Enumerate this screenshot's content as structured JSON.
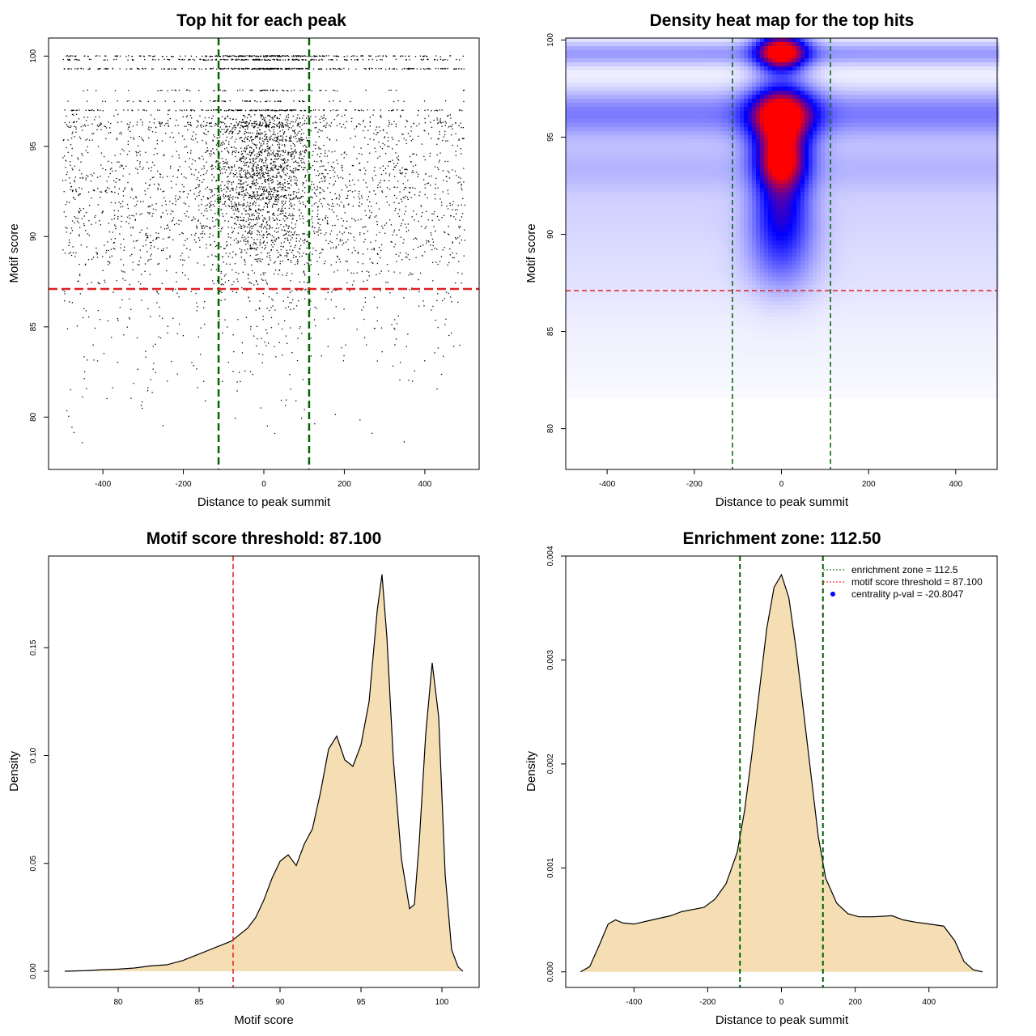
{
  "panels": {
    "scatter": {
      "title": "Top hit for each peak",
      "xlabel": "Distance to peak summit",
      "ylabel": "Motif score"
    },
    "heatmap": {
      "title": "Density heat map for the top hits",
      "xlabel": "Distance to peak summit",
      "ylabel": "Motif score"
    },
    "score_density": {
      "title": "Motif score threshold: 87.100",
      "xlabel": "Motif score",
      "ylabel": "Density"
    },
    "distance_density": {
      "title": "Enrichment zone: 112.50",
      "xlabel": "Distance to peak summit",
      "ylabel": "Density",
      "legend": [
        {
          "label": "enrichment zone = 112.5",
          "color": "#006400",
          "style": "dotted-line"
        },
        {
          "label": "motif score threshold = 87.100",
          "color": "#ff0000",
          "style": "dotted-line"
        },
        {
          "label": "centrality p-val = -20.8047",
          "color": "#0000ff",
          "style": "point"
        }
      ]
    }
  },
  "colors": {
    "zone_line": "#006400",
    "threshold_line": "#e02020",
    "density_fill": "#f5deb3",
    "points": "#000000",
    "heat_low": "#ffffff",
    "heat_mid": "#0000ff",
    "heat_high": "#ff0000"
  },
  "chart_data": [
    {
      "id": "scatter",
      "type": "scatter",
      "title": "Top hit for each peak",
      "xlabel": "Distance to peak summit",
      "ylabel": "Motif score",
      "xlim": [
        -535,
        535
      ],
      "ylim": [
        77.1,
        101.0
      ],
      "xticks": [
        -400,
        -200,
        0,
        200,
        400
      ],
      "yticks": [
        80,
        85,
        90,
        95,
        100
      ],
      "score_levels": [
        100,
        99.8,
        99.3,
        98.1,
        97.5,
        97.0,
        96.6,
        96.2,
        95.8,
        95.4,
        95.0,
        94.6,
        94.2,
        93.8,
        93.4,
        93.0,
        92.6,
        92.2,
        91.8,
        91.4,
        91.0,
        90.6,
        90.2,
        89.8,
        89.4,
        89.0,
        88.6,
        88.0,
        87.5,
        87.0,
        86.5,
        86.0,
        85.5,
        85.0,
        84.5,
        84.0,
        83.5,
        83.0,
        82.5,
        82.0,
        81.5,
        81.0,
        80.5,
        80.0,
        79.5,
        79.0,
        78.5
      ],
      "level_counts": [
        260,
        200,
        320,
        70,
        70,
        190,
        140,
        330,
        140,
        200,
        110,
        200,
        160,
        230,
        200,
        160,
        220,
        220,
        180,
        140,
        170,
        150,
        140,
        140,
        130,
        110,
        100,
        70,
        60,
        50,
        40,
        35,
        30,
        30,
        24,
        20,
        18,
        16,
        14,
        12,
        10,
        8,
        6,
        5,
        4,
        3,
        2
      ],
      "central_fraction": [
        0.4,
        0.4,
        0.35,
        0.45,
        0.45,
        0.4,
        0.35,
        0.35,
        0.4,
        0.5,
        0.55,
        0.5,
        0.55,
        0.5,
        0.5,
        0.45,
        0.45,
        0.5,
        0.45,
        0.4,
        0.4,
        0.4,
        0.35,
        0.35,
        0.35,
        0.3,
        0.3,
        0.25,
        0.25,
        0.2,
        0.2,
        0.2,
        0.2,
        0.15,
        0.15,
        0.15,
        0.15,
        0.1,
        0.1,
        0.1,
        0.1,
        0.1,
        0.1,
        0.1,
        0.1,
        0.1,
        0.1
      ],
      "vlines": [
        -112.5,
        112.5
      ],
      "hline": 87.1
    },
    {
      "id": "heatmap",
      "type": "heatmap",
      "title": "Density heat map for the top hits",
      "xlabel": "Distance to peak summit",
      "ylabel": "Motif score",
      "xlim": [
        -495,
        495
      ],
      "ylim": [
        77.9,
        100.1
      ],
      "xticks": [
        -400,
        -200,
        0,
        200,
        400
      ],
      "yticks": [
        80,
        85,
        90,
        95,
        100
      ],
      "hotspots": [
        {
          "x": 0,
          "y": 99.4,
          "intensity": 1.0,
          "sx": 40,
          "sy": 0.7
        },
        {
          "x": 0,
          "y": 96.1,
          "intensity": 1.0,
          "sx": 50,
          "sy": 1.1
        },
        {
          "x": 0,
          "y": 93.8,
          "intensity": 0.8,
          "sx": 40,
          "sy": 1.0
        },
        {
          "x": 0,
          "y": 91.5,
          "intensity": 0.45,
          "sx": 45,
          "sy": 1.5
        },
        {
          "x": 0,
          "y": 89.0,
          "intensity": 0.25,
          "sx": 55,
          "sy": 1.5
        }
      ],
      "bands": [
        {
          "y": 99.3,
          "intensity": 0.22,
          "sy": 0.45
        },
        {
          "y": 96.2,
          "intensity": 0.28,
          "sy": 0.9
        },
        {
          "y": 93.5,
          "intensity": 0.14,
          "sy": 1.0
        },
        {
          "y": 91.0,
          "intensity": 0.08,
          "sy": 1.4
        },
        {
          "y": 88.0,
          "intensity": 0.05,
          "sy": 1.5
        },
        {
          "y": 84.5,
          "intensity": 0.025,
          "sy": 2.2
        }
      ],
      "vlines": [
        -112.5,
        112.5
      ],
      "hline": 87.1
    },
    {
      "id": "score_density",
      "type": "area",
      "title": "Motif score threshold: 87.100",
      "xlabel": "Motif score",
      "ylabel": "Density",
      "xlim": [
        75.7,
        102.3
      ],
      "ylim": [
        -0.0075,
        0.1925
      ],
      "xticks": [
        80,
        85,
        90,
        95,
        100
      ],
      "yticks": [
        0.0,
        0.05,
        0.1,
        0.15
      ],
      "ytick_labels": [
        "0.00",
        "0.05",
        "0.10",
        "0.15"
      ],
      "x": [
        76.7,
        78,
        79,
        80,
        81,
        82,
        83,
        84,
        85,
        86,
        87,
        88,
        88.5,
        89,
        89.5,
        90,
        90.5,
        91,
        91.5,
        92,
        92.5,
        93,
        93.5,
        94,
        94.5,
        95,
        95.5,
        96,
        96.3,
        96.6,
        97,
        97.5,
        98,
        98.3,
        98.6,
        99,
        99.4,
        99.8,
        100.2,
        100.6,
        101,
        101.3
      ],
      "y": [
        0.0,
        0.0003,
        0.0007,
        0.001,
        0.0015,
        0.0025,
        0.003,
        0.005,
        0.008,
        0.011,
        0.014,
        0.02,
        0.025,
        0.033,
        0.043,
        0.051,
        0.054,
        0.049,
        0.059,
        0.066,
        0.083,
        0.103,
        0.109,
        0.098,
        0.095,
        0.105,
        0.125,
        0.167,
        0.184,
        0.155,
        0.098,
        0.052,
        0.029,
        0.031,
        0.06,
        0.11,
        0.143,
        0.118,
        0.045,
        0.01,
        0.002,
        0.0
      ],
      "vline": 87.1
    },
    {
      "id": "distance_density",
      "type": "area",
      "title": "Enrichment zone: 112.50",
      "xlabel": "Distance to peak summit",
      "ylabel": "Density",
      "xlim": [
        -585,
        585
      ],
      "ylim": [
        -0.00015,
        0.004
      ],
      "xticks": [
        -400,
        -200,
        0,
        200,
        400
      ],
      "yticks": [
        0.0,
        0.001,
        0.002,
        0.003,
        0.004
      ],
      "ytick_labels": [
        "0.000",
        "0.001",
        "0.002",
        "0.003",
        "0.004"
      ],
      "x": [
        -545,
        -520,
        -495,
        -470,
        -450,
        -430,
        -400,
        -350,
        -300,
        -270,
        -240,
        -210,
        -180,
        -150,
        -120,
        -100,
        -80,
        -60,
        -40,
        -20,
        0,
        20,
        40,
        60,
        80,
        100,
        120,
        150,
        180,
        210,
        250,
        300,
        330,
        360,
        400,
        440,
        470,
        495,
        520,
        545
      ],
      "y": [
        0.0,
        5e-05,
        0.00025,
        0.00046,
        0.0005,
        0.00047,
        0.00046,
        0.0005,
        0.00054,
        0.00058,
        0.0006,
        0.00062,
        0.0007,
        0.00085,
        0.00115,
        0.00155,
        0.0021,
        0.0027,
        0.0033,
        0.0037,
        0.00382,
        0.0036,
        0.0031,
        0.0025,
        0.0019,
        0.0013,
        0.0009,
        0.00066,
        0.00056,
        0.00053,
        0.00053,
        0.00054,
        0.0005,
        0.00048,
        0.00046,
        0.00044,
        0.0003,
        0.0001,
        2e-05,
        0.0
      ],
      "vlines": [
        -112.5,
        112.5
      ]
    }
  ]
}
